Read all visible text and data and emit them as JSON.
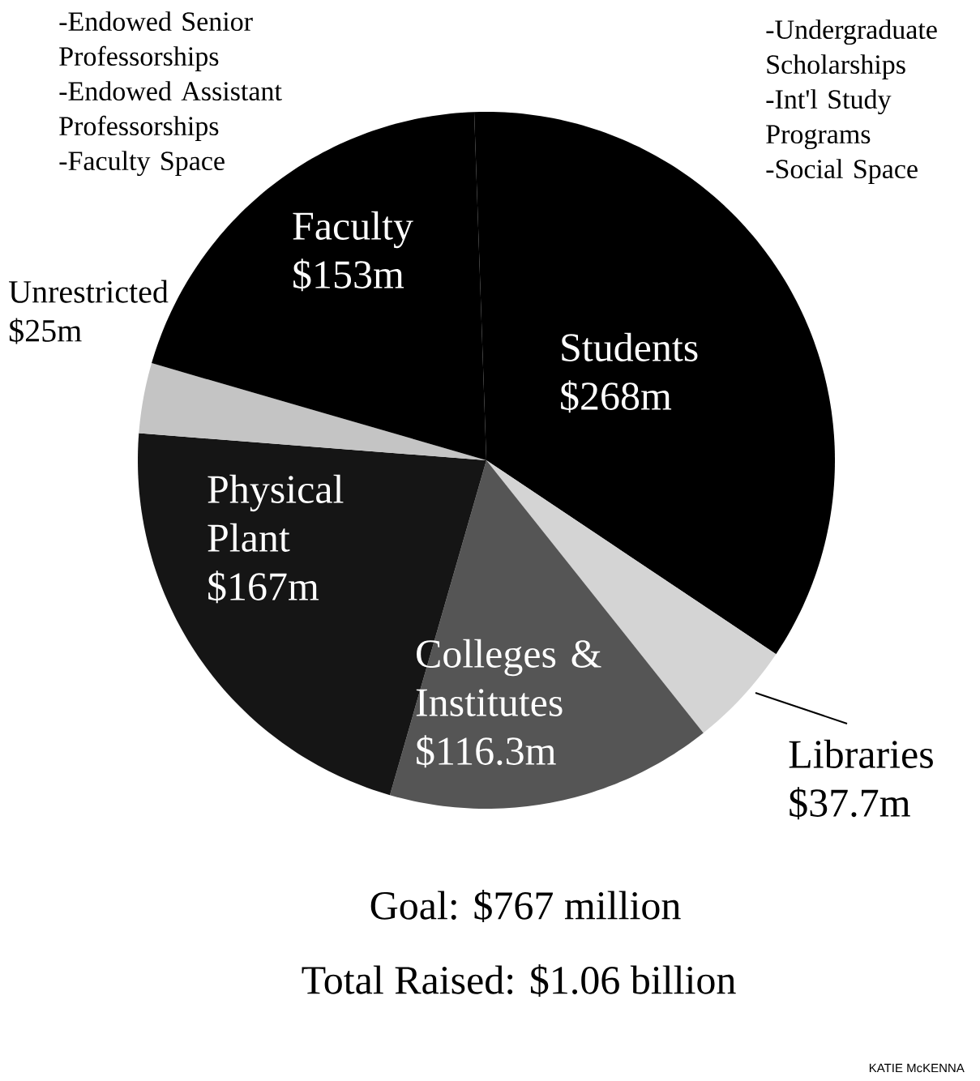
{
  "chart_data": {
    "type": "pie",
    "categories": [
      "Students",
      "Libraries",
      "Colleges & Institutes",
      "Physical Plant",
      "Unrestricted",
      "Faculty"
    ],
    "values": [
      268,
      37.7,
      116.3,
      167,
      25,
      153
    ],
    "value_labels": [
      "$268m",
      "$37.7m",
      "$116.3m",
      "$167m",
      "$25m",
      "$153m"
    ],
    "colors": [
      "#000000",
      "#d4d4d4",
      "#555555",
      "#151515",
      "#c4c4c4",
      "#000000"
    ],
    "annotations": [
      "-Endowed Senior Professorships",
      "-Endowed Assistant Professorships",
      "-Faculty Space",
      "-Undergraduate Scholarships",
      "-Int'l Study Programs",
      "-Social Space",
      "Goal: $767 million",
      "Total Raised:  $1.06 billion",
      "KATIE McKENNA"
    ]
  }
}
